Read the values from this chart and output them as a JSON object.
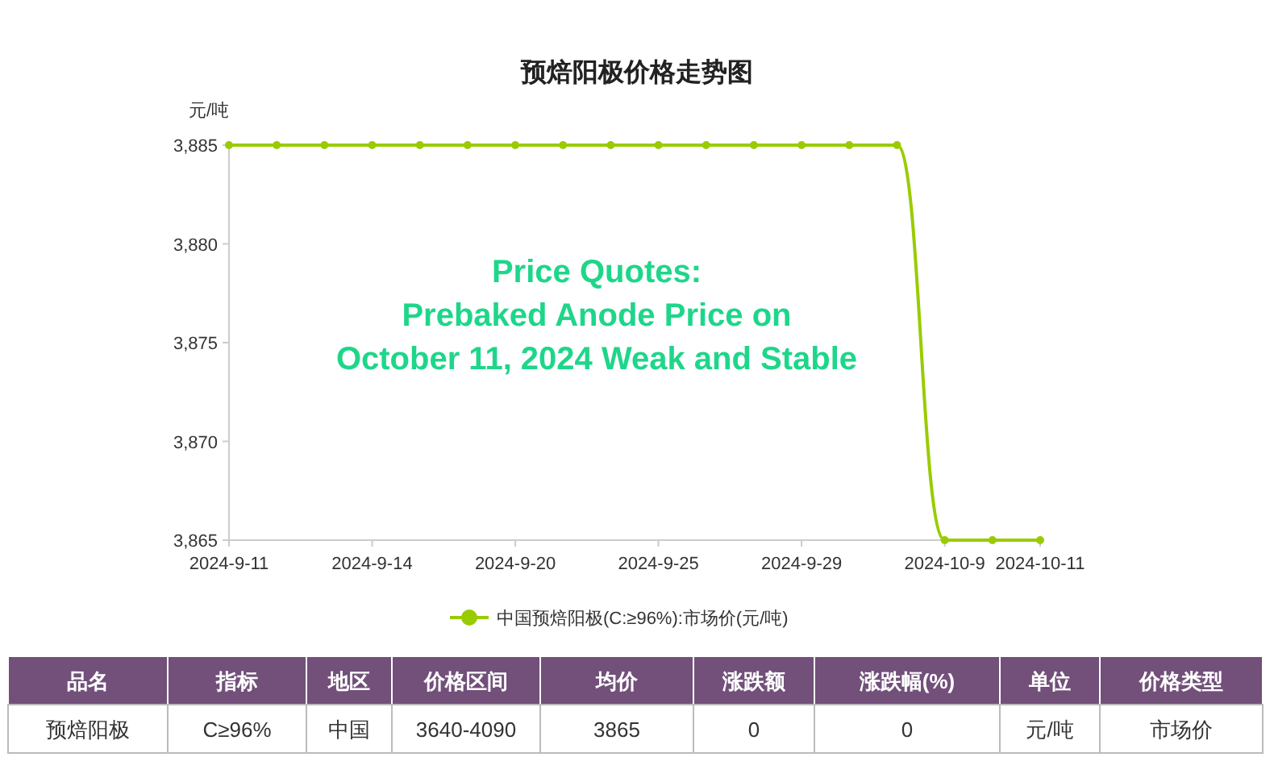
{
  "chart_data": [
    {
      "type": "line",
      "title": "预焙阳极价格走势图",
      "ylabel": "元/吨",
      "categories": [
        "2024-9-11",
        null,
        null,
        "2024-9-14",
        null,
        null,
        "2024-9-20",
        null,
        null,
        "2024-9-25",
        null,
        null,
        "2024-9-29",
        null,
        null,
        "2024-10-9",
        null,
        "2024-10-11"
      ],
      "series": [
        {
          "name": "中国预焙阳极(C:≥96%):市场价(元/吨)",
          "color": "#99cc00",
          "values": [
            3885,
            3885,
            3885,
            3885,
            3885,
            3885,
            3885,
            3885,
            3885,
            3885,
            3885,
            3885,
            3885,
            3885,
            3885,
            3865,
            3865,
            3865
          ]
        }
      ],
      "ylim": [
        3865,
        3885
      ],
      "yticks": [
        {
          "value": 3865,
          "label": "3,865"
        },
        {
          "value": 3870,
          "label": "3,870"
        },
        {
          "value": 3875,
          "label": "3,875"
        },
        {
          "value": 3880,
          "label": "3,880"
        },
        {
          "value": 3885,
          "label": "3,885"
        }
      ],
      "marker": "circle",
      "legend": "bottom",
      "grid": false,
      "annotations": [
        "Price Quotes:\nPrebaked Anode Price on\nOctober 11, 2024 Weak and Stable"
      ]
    },
    {
      "type": "other",
      "categories": [
        "品名",
        "指标",
        "地区",
        "价格区间",
        "均价",
        "涨跌额",
        "涨跌幅(%)",
        "单位",
        "价格类型"
      ],
      "cell_labels": [
        [
          "预焙阳极",
          "C≥96%",
          "中国",
          "3640-4090",
          "3865",
          "0",
          "0",
          "元/吨",
          "市场价"
        ]
      ]
    }
  ]
}
